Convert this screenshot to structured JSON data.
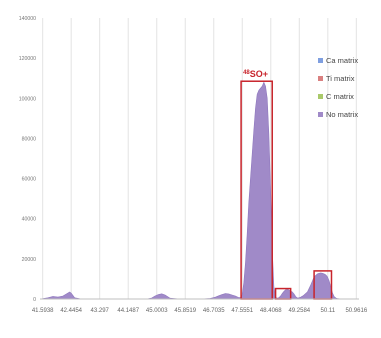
{
  "chart_data": {
    "type": "area",
    "title": "",
    "xlabel": "",
    "ylabel": "",
    "ylim": [
      0,
      140000
    ],
    "y_ticks": [
      0,
      20000,
      40000,
      60000,
      80000,
      100000,
      120000,
      140000
    ],
    "x_tick_labels": [
      "41.5938",
      "42.4454",
      "43.297",
      "44.1487",
      "45.0003",
      "45.8519",
      "46.7035",
      "47.5551",
      "48.4068",
      "49.2584",
      "50.11",
      "50.9616"
    ],
    "grid": "vertical",
    "legend_position": "right",
    "series": [
      {
        "name": "Ca matrix",
        "color": "#7f9fe0"
      },
      {
        "name": "Ti matrix",
        "color": "#d98080"
      },
      {
        "name": "C matrix",
        "color": "#a9c96a"
      },
      {
        "name": "No matrix",
        "color": "#a08ac8",
        "x": [
          41.5938,
          41.75,
          41.9,
          42.05,
          42.2,
          42.3,
          42.4,
          42.45,
          42.55,
          42.7,
          42.9,
          43.3,
          44.0,
          44.7,
          44.85,
          44.95,
          45.05,
          45.15,
          45.25,
          45.4,
          45.7,
          46.3,
          46.6,
          46.75,
          46.85,
          46.95,
          47.05,
          47.15,
          47.25,
          47.35,
          47.45,
          47.5,
          47.52,
          47.55,
          47.6,
          47.65,
          47.7,
          47.75,
          47.8,
          47.85,
          47.9,
          47.95,
          48.0,
          48.05,
          48.1,
          48.15,
          48.2,
          48.25,
          48.3,
          48.35,
          48.4,
          48.45,
          48.5,
          48.55,
          48.6,
          48.65,
          48.7,
          48.75,
          48.8,
          48.85,
          48.9,
          48.95,
          49.0,
          49.05,
          49.1,
          49.15,
          49.2,
          49.25,
          49.3,
          49.35,
          49.4,
          49.5,
          49.6,
          49.7,
          49.8,
          49.85,
          49.9,
          49.95,
          50.0,
          50.05,
          50.1,
          50.15,
          50.2,
          50.25,
          50.3,
          50.35,
          50.4,
          50.5,
          50.7,
          50.9616
        ],
        "y": [
          200,
          600,
          1300,
          1000,
          1500,
          2500,
          3500,
          2800,
          600,
          150,
          0,
          0,
          0,
          0,
          500,
          1500,
          2200,
          2600,
          2000,
          400,
          0,
          0,
          300,
          900,
          1600,
          2200,
          2700,
          2500,
          2000,
          1500,
          700,
          700,
          1000,
          2000,
          8000,
          18000,
          32000,
          48000,
          60000,
          72000,
          84000,
          95000,
          102000,
          104000,
          105000,
          106000,
          108000,
          106000,
          100000,
          82000,
          55000,
          25000,
          6000,
          800,
          400,
          700,
          1500,
          2800,
          3800,
          4600,
          4800,
          4500,
          4000,
          3500,
          2500,
          1200,
          500,
          600,
          900,
          1400,
          2000,
          3500,
          7000,
          11000,
          12500,
          12800,
          13000,
          12800,
          12500,
          12000,
          11000,
          9000,
          6000,
          3000,
          1200,
          500,
          200,
          50,
          0,
          0
        ]
      }
    ],
    "annotations": {
      "peak_label_superscript": "48",
      "peak_label_main": "SO+"
    },
    "highlight_boxes": [
      {
        "x_from": 47.52,
        "x_to": 48.45,
        "y_from": 0,
        "y_to": 108500
      },
      {
        "x_from": 48.55,
        "x_to": 49.0,
        "y_from": 0,
        "y_to": 5200
      },
      {
        "x_from": 49.7,
        "x_to": 50.22,
        "y_from": 0,
        "y_to": 14000
      }
    ]
  }
}
